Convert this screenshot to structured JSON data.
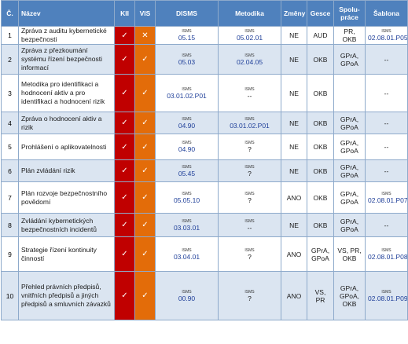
{
  "headers": {
    "num": "Č.",
    "name": "Název",
    "kii": "KII",
    "vis": "VIS",
    "disms": "DISMS",
    "metodika": "Metodika",
    "zmeny": "Změny",
    "gesce": "Gesce",
    "spolu": "Spolu-práce",
    "sablona": "Šablona"
  },
  "colors": {
    "header": "#4f81bd",
    "kii": "#c00000",
    "vis": "#e36c09",
    "alt_row": "#dbe5f1",
    "link": "#1f3f99"
  },
  "rows": [
    {
      "num": "1",
      "name": "Zpráva z auditu kybernetické bezpečnosti",
      "kii": "✓",
      "vis": "✕",
      "disms_sm": "ISMS",
      "disms": "05.15",
      "met_sm": "ISMS",
      "met": "05.02.01",
      "zmeny": "NE",
      "gesce": "AUD",
      "spolu": "PR, OKB",
      "sab_sm": "ISMS",
      "sab": "02.08.01.P05"
    },
    {
      "num": "2",
      "name": "Zpráva z přezkoumání systému řízení bezpečnosti informací",
      "kii": "✓",
      "vis": "✓",
      "disms_sm": "ISMS",
      "disms": "05.03",
      "met_sm": "ISMS",
      "met": "02.04.05",
      "zmeny": "NE",
      "gesce": "OKB",
      "spolu": "GPrA, GPoA",
      "sab_sm": "",
      "sab": "--"
    },
    {
      "num": "3",
      "name": "Metodika pro identifikaci a hodnocení aktiv a pro identifikaci a hodnocení rizik",
      "kii": "✓",
      "vis": "✓",
      "disms_sm": "ISMS",
      "disms": "03.01.02.P01",
      "met_sm": "ISMS",
      "met": "--",
      "zmeny": "NE",
      "gesce": "OKB",
      "spolu": "",
      "sab_sm": "",
      "sab": "--"
    },
    {
      "num": "4",
      "name": "Zpráva o hodnocení aktiv a rizik",
      "kii": "✓",
      "vis": "✓",
      "disms_sm": "ISMS",
      "disms": "04.90",
      "met_sm": "ISMS",
      "met": "03.01.02.P01",
      "zmeny": "NE",
      "gesce": "OKB",
      "spolu": "GPrA, GPoA",
      "sab_sm": "",
      "sab": "--"
    },
    {
      "num": "5",
      "name": "Prohlášení o aplikovatelnosti",
      "kii": "✓",
      "vis": "✓",
      "disms_sm": "ISMS",
      "disms": "04.90",
      "met_sm": "ISMS",
      "met": "?",
      "zmeny": "NE",
      "gesce": "OKB",
      "spolu": "GPrA, GPoA",
      "sab_sm": "",
      "sab": "--"
    },
    {
      "num": "6",
      "name": "Plán zvládání rizik",
      "kii": "✓",
      "vis": "✓",
      "disms_sm": "ISMS",
      "disms": "05.45",
      "met_sm": "ISMS",
      "met": "?",
      "zmeny": "NE",
      "gesce": "OKB",
      "spolu": "GPrA, GPoA",
      "sab_sm": "",
      "sab": "--"
    },
    {
      "num": "7",
      "name": "Plán rozvoje bezpečnostního povědomí",
      "kii": "✓",
      "vis": "✓",
      "disms_sm": "ISMS",
      "disms": "05.05.10",
      "met_sm": "ISMS",
      "met": "?",
      "zmeny": "ANO",
      "gesce": "OKB",
      "spolu": "GPrA, GPoA",
      "sab_sm": "ISMS",
      "sab": "02.08.01.P07"
    },
    {
      "num": "8",
      "name": "Zvládání kybernetických bezpečnostních incidentů",
      "kii": "✓",
      "vis": "✓",
      "disms_sm": "ISMS",
      "disms": "03.03.01",
      "met_sm": "ISMS",
      "met": "--",
      "zmeny": "NE",
      "gesce": "OKB",
      "spolu": "GPrA, GPoA",
      "sab_sm": "",
      "sab": "--"
    },
    {
      "num": "9",
      "name": "Strategie řízení kontinuity činností",
      "kii": "✓",
      "vis": "✓",
      "disms_sm": "ISMS",
      "disms": "03.04.01",
      "met_sm": "ISMS",
      "met": "?",
      "zmeny": "ANO",
      "gesce": "GPrA, GPoA",
      "spolu": "VS, PR, OKB",
      "sab_sm": "ISMS",
      "sab": "02.08.01.P08"
    },
    {
      "num": "10",
      "name": "Přehled právních předpisů, vnitřních předpisů a jiných předpisů a smluvních závazků",
      "kii": "✓",
      "vis": "✓",
      "disms_sm": "ISMS",
      "disms": "00.90",
      "met_sm": "ISMS",
      "met": "?",
      "zmeny": "ANO",
      "gesce": "VS, PR",
      "spolu": "GPrA, GPoA, OKB",
      "sab_sm": "ISMS",
      "sab": "02.08.01.P09"
    }
  ]
}
